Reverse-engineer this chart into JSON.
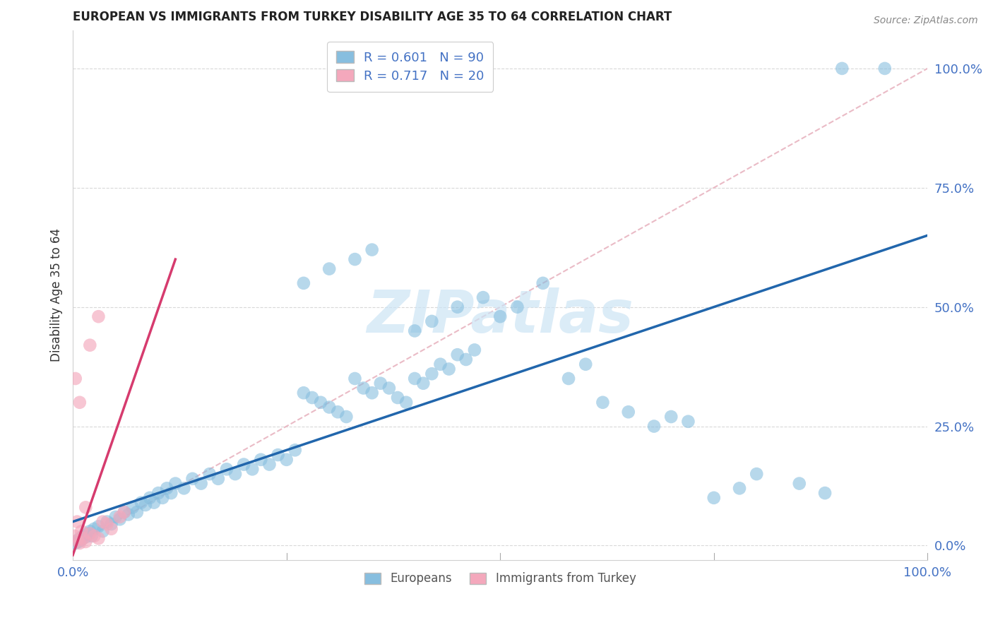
{
  "title": "EUROPEAN VS IMMIGRANTS FROM TURKEY DISABILITY AGE 35 TO 64 CORRELATION CHART",
  "source": "Source: ZipAtlas.com",
  "ylabel": "Disability Age 35 to 64",
  "y_ticks": [
    "0.0%",
    "25.0%",
    "50.0%",
    "75.0%",
    "100.0%"
  ],
  "y_tick_vals": [
    0,
    25,
    50,
    75,
    100
  ],
  "x_tick_vals": [
    0,
    25,
    50,
    75,
    100
  ],
  "legend_blue_label_r": "R = 0.601",
  "legend_blue_label_n": "N = 90",
  "legend_pink_label_r": "R = 0.717",
  "legend_pink_label_n": "N = 20",
  "legend_bottom_blue": "Europeans",
  "legend_bottom_pink": "Immigrants from Turkey",
  "blue_color": "#87bedf",
  "pink_color": "#f4a8bc",
  "blue_line_color": "#2166ac",
  "pink_line_color": "#d63b6e",
  "diagonal_color": "#e8b4c0",
  "watermark_text": "ZIPatlas",
  "watermark_color": "#cce4f5",
  "blue_scatter": [
    [
      0.3,
      0.5
    ],
    [
      0.5,
      1.0
    ],
    [
      0.7,
      0.8
    ],
    [
      0.8,
      1.5
    ],
    [
      1.0,
      1.2
    ],
    [
      1.2,
      2.0
    ],
    [
      1.5,
      1.8
    ],
    [
      1.8,
      2.5
    ],
    [
      2.0,
      3.0
    ],
    [
      2.2,
      2.0
    ],
    [
      2.5,
      3.5
    ],
    [
      3.0,
      4.0
    ],
    [
      3.5,
      3.0
    ],
    [
      4.0,
      5.0
    ],
    [
      4.5,
      4.5
    ],
    [
      5.0,
      6.0
    ],
    [
      5.5,
      5.5
    ],
    [
      6.0,
      7.0
    ],
    [
      6.5,
      6.5
    ],
    [
      7.0,
      8.0
    ],
    [
      7.5,
      7.0
    ],
    [
      8.0,
      9.0
    ],
    [
      8.5,
      8.5
    ],
    [
      9.0,
      10.0
    ],
    [
      9.5,
      9.0
    ],
    [
      10.0,
      11.0
    ],
    [
      10.5,
      10.0
    ],
    [
      11.0,
      12.0
    ],
    [
      11.5,
      11.0
    ],
    [
      12.0,
      13.0
    ],
    [
      13.0,
      12.0
    ],
    [
      14.0,
      14.0
    ],
    [
      15.0,
      13.0
    ],
    [
      16.0,
      15.0
    ],
    [
      17.0,
      14.0
    ],
    [
      18.0,
      16.0
    ],
    [
      19.0,
      15.0
    ],
    [
      20.0,
      17.0
    ],
    [
      21.0,
      16.0
    ],
    [
      22.0,
      18.0
    ],
    [
      23.0,
      17.0
    ],
    [
      24.0,
      19.0
    ],
    [
      25.0,
      18.0
    ],
    [
      26.0,
      20.0
    ],
    [
      27.0,
      32.0
    ],
    [
      28.0,
      31.0
    ],
    [
      29.0,
      30.0
    ],
    [
      30.0,
      29.0
    ],
    [
      31.0,
      28.0
    ],
    [
      32.0,
      27.0
    ],
    [
      33.0,
      35.0
    ],
    [
      34.0,
      33.0
    ],
    [
      35.0,
      32.0
    ],
    [
      36.0,
      34.0
    ],
    [
      37.0,
      33.0
    ],
    [
      38.0,
      31.0
    ],
    [
      39.0,
      30.0
    ],
    [
      40.0,
      35.0
    ],
    [
      41.0,
      34.0
    ],
    [
      42.0,
      36.0
    ],
    [
      43.0,
      38.0
    ],
    [
      44.0,
      37.0
    ],
    [
      45.0,
      40.0
    ],
    [
      46.0,
      39.0
    ],
    [
      47.0,
      41.0
    ],
    [
      27.0,
      55.0
    ],
    [
      30.0,
      58.0
    ],
    [
      33.0,
      60.0
    ],
    [
      35.0,
      62.0
    ],
    [
      40.0,
      45.0
    ],
    [
      42.0,
      47.0
    ],
    [
      45.0,
      50.0
    ],
    [
      48.0,
      52.0
    ],
    [
      50.0,
      48.0
    ],
    [
      52.0,
      50.0
    ],
    [
      55.0,
      55.0
    ],
    [
      58.0,
      35.0
    ],
    [
      60.0,
      38.0
    ],
    [
      62.0,
      30.0
    ],
    [
      65.0,
      28.0
    ],
    [
      68.0,
      25.0
    ],
    [
      70.0,
      27.0
    ],
    [
      72.0,
      26.0
    ],
    [
      75.0,
      10.0
    ],
    [
      78.0,
      12.0
    ],
    [
      80.0,
      15.0
    ],
    [
      85.0,
      13.0
    ],
    [
      88.0,
      11.0
    ],
    [
      90.0,
      100.0
    ],
    [
      95.0,
      100.0
    ]
  ],
  "pink_scatter": [
    [
      0.2,
      2.0
    ],
    [
      0.5,
      1.0
    ],
    [
      0.8,
      0.5
    ],
    [
      1.0,
      3.0
    ],
    [
      1.2,
      1.5
    ],
    [
      1.5,
      0.8
    ],
    [
      2.0,
      2.5
    ],
    [
      2.5,
      2.0
    ],
    [
      3.0,
      1.5
    ],
    [
      0.3,
      35.0
    ],
    [
      0.8,
      30.0
    ],
    [
      3.5,
      5.0
    ],
    [
      4.0,
      4.5
    ],
    [
      4.5,
      3.5
    ],
    [
      5.5,
      6.0
    ],
    [
      6.0,
      7.0
    ],
    [
      0.5,
      5.0
    ],
    [
      1.5,
      8.0
    ],
    [
      2.0,
      42.0
    ],
    [
      3.0,
      48.0
    ]
  ],
  "blue_line_x": [
    0,
    100
  ],
  "blue_line_y": [
    5,
    65
  ],
  "pink_line_x": [
    0,
    12
  ],
  "pink_line_y": [
    -2,
    60
  ],
  "diagonal_line_x": [
    0,
    100
  ],
  "diagonal_line_y": [
    0,
    100
  ],
  "xlim": [
    0,
    100
  ],
  "ylim": [
    -3,
    108
  ]
}
